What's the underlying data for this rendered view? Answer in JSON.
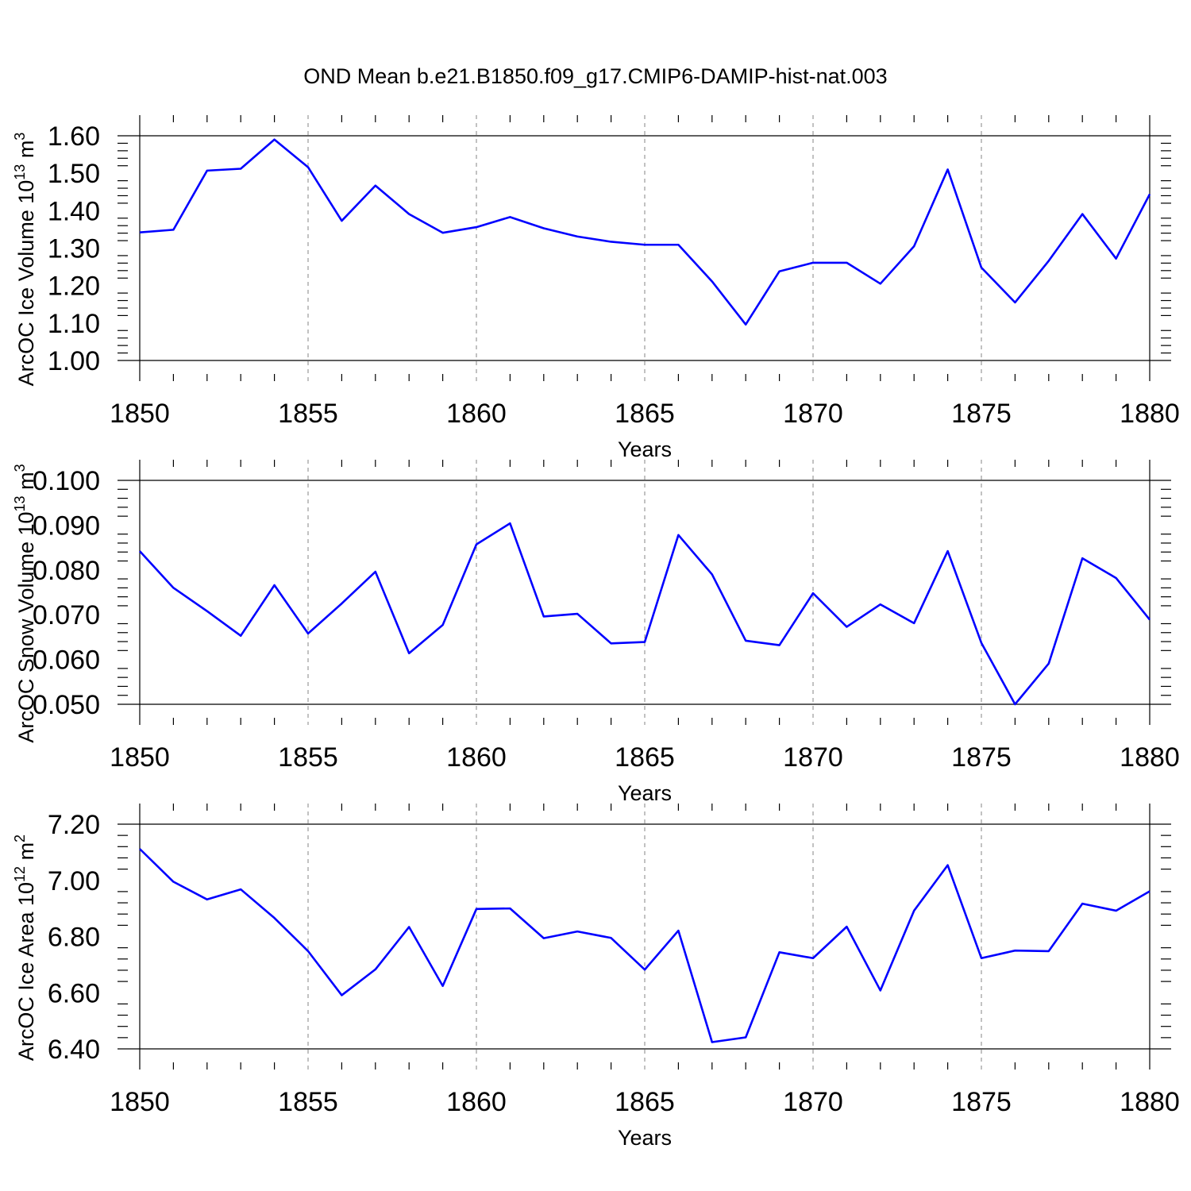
{
  "figure": {
    "title": "OND Mean b.e21.B1850.f09_g17.CMIP6-DAMIP-hist-nat.003"
  },
  "colors": {
    "line": "#0000ff",
    "axis": "#000000",
    "grid": "#9a9a9a"
  },
  "chart_data": [
    {
      "type": "line",
      "xlabel": "Years",
      "ylabel": "ArcOC Ice Volume 10",
      "ylabel_sup": "13",
      "ylabel_unit": " m",
      "ylabel_unit_sup": "3",
      "xlim": [
        1850,
        1880
      ],
      "ylim": [
        1.0,
        1.6
      ],
      "xticks": [
        1850,
        1855,
        1860,
        1865,
        1870,
        1875,
        1880
      ],
      "xtick_labels": [
        "1850",
        "1855",
        "1860",
        "1865",
        "1870",
        "1875",
        "1880"
      ],
      "yticks": [
        1.0,
        1.1,
        1.2,
        1.3,
        1.4,
        1.5,
        1.6
      ],
      "ytick_labels": [
        "1.00",
        "1.10",
        "1.20",
        "1.30",
        "1.40",
        "1.50",
        "1.60"
      ],
      "grid": "dashed vertical at major x ticks",
      "x": [
        1850,
        1851,
        1852,
        1853,
        1854,
        1855,
        1856,
        1857,
        1858,
        1859,
        1860,
        1861,
        1862,
        1863,
        1864,
        1865,
        1866,
        1867,
        1868,
        1869,
        1870,
        1871,
        1872,
        1873,
        1874,
        1875,
        1876,
        1877,
        1878,
        1879,
        1880
      ],
      "series": [
        {
          "values": [
            1.342,
            1.349,
            1.507,
            1.512,
            1.59,
            1.516,
            1.373,
            1.467,
            1.391,
            1.341,
            1.356,
            1.383,
            1.353,
            1.331,
            1.317,
            1.309,
            1.309,
            1.211,
            1.096,
            1.238,
            1.261,
            1.261,
            1.205,
            1.305,
            1.51,
            1.248,
            1.155,
            1.266,
            1.391,
            1.272,
            1.444
          ]
        }
      ]
    },
    {
      "type": "line",
      "xlabel": "Years",
      "ylabel": "ArcOC Snow Volume 10",
      "ylabel_sup": "13",
      "ylabel_unit": " m",
      "ylabel_unit_sup": "3",
      "xlim": [
        1850,
        1880
      ],
      "ylim": [
        0.05,
        0.1
      ],
      "xticks": [
        1850,
        1855,
        1860,
        1865,
        1870,
        1875,
        1880
      ],
      "xtick_labels": [
        "1850",
        "1855",
        "1860",
        "1865",
        "1870",
        "1875",
        "1880"
      ],
      "yticks": [
        0.05,
        0.06,
        0.07,
        0.08,
        0.09,
        0.1
      ],
      "ytick_labels": [
        "0.050",
        "0.060",
        "0.070",
        "0.080",
        "0.090",
        "0.100"
      ],
      "grid": "dashed vertical at major x ticks",
      "x": [
        1850,
        1851,
        1852,
        1853,
        1854,
        1855,
        1856,
        1857,
        1858,
        1859,
        1860,
        1861,
        1862,
        1863,
        1864,
        1865,
        1866,
        1867,
        1868,
        1869,
        1870,
        1871,
        1872,
        1873,
        1874,
        1875,
        1876,
        1877,
        1878,
        1879,
        1880
      ],
      "series": [
        {
          "values": [
            0.0842,
            0.076,
            0.0708,
            0.0653,
            0.0766,
            0.0658,
            0.0725,
            0.0796,
            0.0614,
            0.0677,
            0.0857,
            0.0904,
            0.0696,
            0.0702,
            0.0636,
            0.0639,
            0.0878,
            0.079,
            0.0642,
            0.0632,
            0.0748,
            0.0673,
            0.0723,
            0.0681,
            0.0842,
            0.0637,
            0.05,
            0.0591,
            0.0826,
            0.0782,
            0.0689
          ]
        }
      ]
    },
    {
      "type": "line",
      "xlabel": "Years",
      "ylabel": "ArcOC Ice Area 10",
      "ylabel_sup": "12",
      "ylabel_unit": " m",
      "ylabel_unit_sup": "2",
      "xlim": [
        1850,
        1880
      ],
      "ylim": [
        6.4,
        7.2
      ],
      "xticks": [
        1850,
        1855,
        1860,
        1865,
        1870,
        1875,
        1880
      ],
      "xtick_labels": [
        "1850",
        "1855",
        "1860",
        "1865",
        "1870",
        "1875",
        "1880"
      ],
      "yticks": [
        6.4,
        6.6,
        6.8,
        7.0,
        7.2
      ],
      "ytick_labels": [
        "6.40",
        "6.60",
        "6.80",
        "7.00",
        "7.20"
      ],
      "grid": "dashed vertical at major x ticks",
      "x": [
        1850,
        1851,
        1852,
        1853,
        1854,
        1855,
        1856,
        1857,
        1858,
        1859,
        1860,
        1861,
        1862,
        1863,
        1864,
        1865,
        1866,
        1867,
        1868,
        1869,
        1870,
        1871,
        1872,
        1873,
        1874,
        1875,
        1876,
        1877,
        1878,
        1879,
        1880
      ],
      "series": [
        {
          "values": [
            7.112,
            6.995,
            6.932,
            6.968,
            6.866,
            6.748,
            6.591,
            6.683,
            6.834,
            6.624,
            6.898,
            6.9,
            6.794,
            6.818,
            6.795,
            6.682,
            6.821,
            6.424,
            6.441,
            6.744,
            6.723,
            6.835,
            6.608,
            6.892,
            7.054,
            6.723,
            6.75,
            6.748,
            6.917,
            6.892,
            6.961
          ]
        }
      ]
    }
  ]
}
